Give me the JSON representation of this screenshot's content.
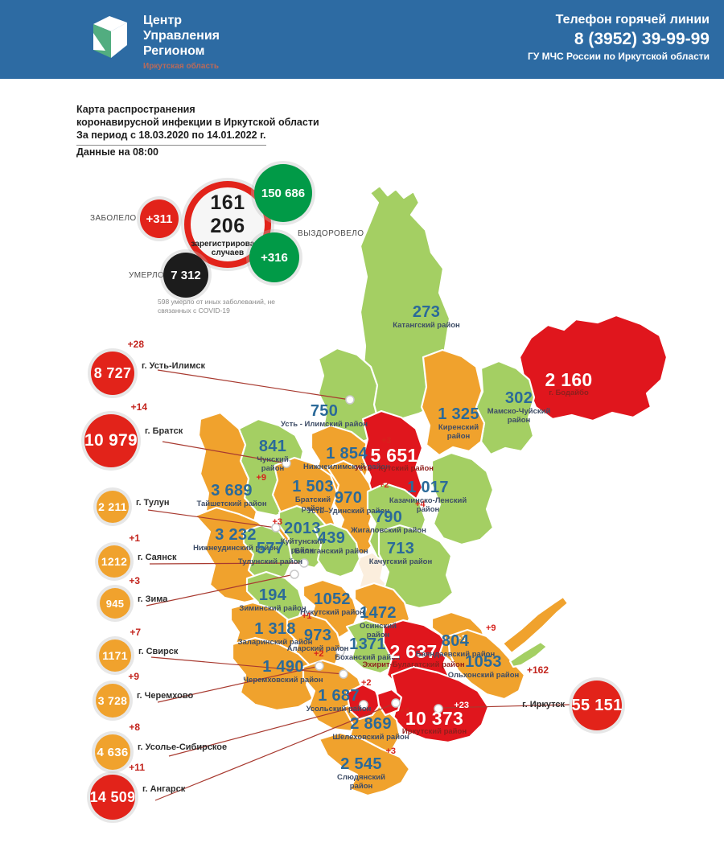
{
  "palette": {
    "header_blue": "#2d6ba3",
    "map_green": "#a4cf63",
    "map_orange": "#f0a22d",
    "map_red": "#e0161d",
    "number_blue": "#2b6a99",
    "name_navy": "#3d4c66",
    "delta_red": "#d6221c",
    "circle_red": "#e2231a",
    "circle_green": "#019a47",
    "circle_black": "#1c1c1c"
  },
  "header": {
    "org_line1": "Центр",
    "org_line2": "Управления",
    "org_line3": "Регионом",
    "org_region": "Иркутская область",
    "hotline_title": "Телефон горячей линии",
    "hotline_phone": "8 (3952) 39-99-99",
    "hotline_org": "ГУ МЧС России по Иркутской области"
  },
  "title": {
    "line1": "Карта распространения",
    "line2": "коронавирусной инфекции в Иркутской области",
    "line3": "За период с 18.03.2020 по 14.01.2022 г.",
    "data_time": "Данные на 08:00"
  },
  "stats": {
    "sick_label": "ЗАБОЛЕЛО",
    "sick_delta": "+311",
    "registered_value": "161 206",
    "registered_caption1": "зарегистрировано",
    "registered_caption2": "случаев",
    "recovered_value": "150 686",
    "recovered_label": "ВЫЗДОРОВЕЛО",
    "recovered_delta": "+316",
    "died_label": "УМЕРЛО",
    "died_value": "7 312",
    "footnote": "598 умерло от иных заболеваний, не связанных с COVID-19"
  },
  "callouts": [
    {
      "id": "ust_ilimsk",
      "value": "8 727",
      "delta": "+28",
      "city": "г. Усть-Илимск",
      "color": "red"
    },
    {
      "id": "bratsk",
      "value": "10 979",
      "delta": "+14",
      "city": "г. Братск",
      "color": "red"
    },
    {
      "id": "tulun",
      "value": "2 211",
      "delta": "",
      "city": "г. Тулун",
      "color": "orange"
    },
    {
      "id": "sayansk",
      "value": "1212",
      "delta": "+1",
      "city": "г. Саянск",
      "color": "orange"
    },
    {
      "id": "zima",
      "value": "945",
      "delta": "+3",
      "city": "г. Зима",
      "color": "orange"
    },
    {
      "id": "svirsk",
      "value": "1171",
      "delta": "+7",
      "city": "г. Свирск",
      "color": "orange"
    },
    {
      "id": "cheremkhovo",
      "value": "3 728",
      "delta": "+9",
      "city": "г. Черемхово",
      "color": "orange"
    },
    {
      "id": "usolye",
      "value": "4 636",
      "delta": "+8",
      "city": "г. Усолье-Сибирское",
      "color": "orange"
    },
    {
      "id": "angarsk",
      "value": "14 509",
      "delta": "+11",
      "city": "г. Ангарск",
      "color": "red"
    },
    {
      "id": "irkutsk",
      "value": "55 151",
      "delta": "+162",
      "city": "г. Иркутск",
      "color": "red",
      "side": "left"
    }
  ],
  "map": {
    "districts": [
      {
        "id": "katangsky",
        "value": "273",
        "delta": "",
        "name": "Катангский район",
        "color": "green"
      },
      {
        "id": "bodaibinsky",
        "value": "2 160",
        "delta": "",
        "name": "г. Бодайбо",
        "color": "red"
      },
      {
        "id": "mamsko_chuysky",
        "value": "302",
        "delta": "",
        "name": "Мамско-Чуйский район",
        "color": "green"
      },
      {
        "id": "kirensky",
        "value": "1 325",
        "delta": "",
        "name": "Киренский район",
        "color": "orange"
      },
      {
        "id": "ust_ilimsky_r",
        "value": "750",
        "delta": "",
        "name": "Усть - Илимский район",
        "color": "green"
      },
      {
        "id": "chunsky",
        "value": "841",
        "delta": "",
        "name": "Чунский район",
        "color": "green"
      },
      {
        "id": "nizhneilimsky",
        "value": "1 854",
        "delta": "+3",
        "name": "Нижнеилимский район",
        "color": "orange"
      },
      {
        "id": "ust_kutsky",
        "value": "5 651",
        "delta": "",
        "name": "Усть - Кутский район",
        "color": "red"
      },
      {
        "id": "bratsky",
        "value": "1 503",
        "delta": "",
        "name": "Братский район",
        "color": "orange"
      },
      {
        "id": "taishetsky",
        "value": "3 689",
        "delta": "+9",
        "name": "Тайшетский район",
        "color": "orange"
      },
      {
        "id": "nizhneudinsky",
        "value": "3 232",
        "delta": "+3",
        "name": "Нижнеудинский район",
        "color": "orange"
      },
      {
        "id": "ust_udinsky",
        "value": "970",
        "delta": "+2",
        "name": "Усть–Удинский район",
        "color": "orange"
      },
      {
        "id": "zhigalovsky",
        "value": "790",
        "delta": "+4",
        "name": "Жигаловский район",
        "color": "green"
      },
      {
        "id": "kazachinsko_lensky",
        "value": "1 017",
        "delta": "",
        "name": "Казачинско-Ленский район",
        "color": "green"
      },
      {
        "id": "kachugsky",
        "value": "713",
        "delta": "",
        "name": "Качугский район",
        "color": "green"
      },
      {
        "id": "kuytunsky",
        "value": "2013",
        "delta": "",
        "name": "Куйтунский район",
        "color": "green"
      },
      {
        "id": "tulunsky",
        "value": "577",
        "delta": "",
        "name": "Тулунский район",
        "color": "green"
      },
      {
        "id": "balagansky",
        "value": "439",
        "delta": "",
        "name": "Балаганский район",
        "color": "green"
      },
      {
        "id": "ziminsky",
        "value": "194",
        "delta": "",
        "name": "Зиминский район",
        "color": "green"
      },
      {
        "id": "nukutsky",
        "value": "1052",
        "delta": "",
        "name": "Нукутский район",
        "color": "orange"
      },
      {
        "id": "osinsky",
        "value": "1472",
        "delta": "",
        "name": "Осинский район",
        "color": "orange"
      },
      {
        "id": "zalarinsky",
        "value": "1 318",
        "delta": "+1",
        "name": "Заларинский район",
        "color": "orange"
      },
      {
        "id": "alarsky",
        "value": "973",
        "delta": "",
        "name": "Аларский район",
        "color": "orange"
      },
      {
        "id": "bokhansky",
        "value": "1371",
        "delta": "",
        "name": "Боханский район",
        "color": "green"
      },
      {
        "id": "ekhirit_bulagatsky",
        "value": "2 637",
        "delta": "+3",
        "name": "Эхирит-Булагатский район",
        "color": "red"
      },
      {
        "id": "bayandaevsky",
        "value": "804",
        "delta": "+9",
        "name": "Баяндаевский район",
        "color": "orange"
      },
      {
        "id": "olkhonsky",
        "value": "1053",
        "delta": "",
        "name": "Ольхонский район",
        "color": "orange"
      },
      {
        "id": "cheremkhovsky",
        "value": "1 490",
        "delta": "+2",
        "name": "Черемховский район",
        "color": "orange"
      },
      {
        "id": "usolsky",
        "value": "1 687",
        "delta": "+2",
        "name": "Усольский район",
        "color": "orange"
      },
      {
        "id": "irkutsky",
        "value": "10 373",
        "delta": "+23",
        "name": "Иркутский район",
        "color": "red"
      },
      {
        "id": "shelekhovsky",
        "value": "2 869",
        "delta": "+4",
        "name": "Шелеховский район",
        "color": "orange"
      },
      {
        "id": "slyudyansky",
        "value": "2 545",
        "delta": "+3",
        "name": "Слюдянский район",
        "color": "orange"
      }
    ]
  }
}
